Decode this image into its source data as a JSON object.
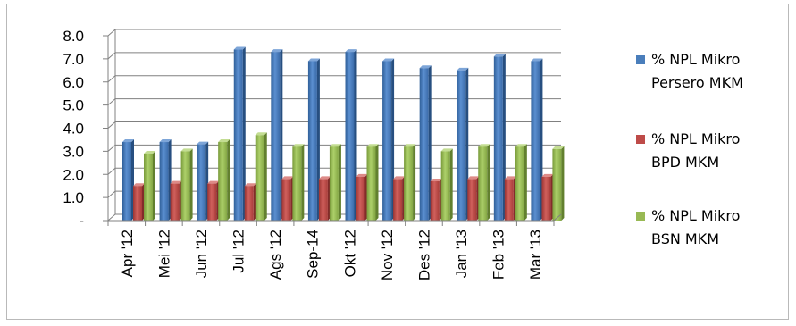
{
  "chart_data": {
    "type": "bar",
    "title": "",
    "xlabel": "",
    "ylabel": "",
    "ylim": [
      0,
      8
    ],
    "yticks": [
      "-",
      "1.0",
      "2.0",
      "3.0",
      "4.0",
      "5.0",
      "6.0",
      "7.0",
      "8.0"
    ],
    "grid": true,
    "legend_position": "right",
    "categories": [
      "Apr '12",
      "Mei '12",
      "Jun '12",
      "Jul '12",
      "Ags '12",
      "Sep-14",
      "Okt '12",
      "Nov '12",
      "Des '12",
      "Jan '13",
      "Feb '13",
      "Mar '13"
    ],
    "series": [
      {
        "name": [
          "% NPL Mikro",
          "Persero MKM"
        ],
        "color": "#4a7ebb",
        "values": [
          3.4,
          3.4,
          3.3,
          7.4,
          7.3,
          6.9,
          7.3,
          6.9,
          6.6,
          6.5,
          7.1,
          6.9
        ]
      },
      {
        "name": [
          "% NPL Mikro",
          "BPD MKM"
        ],
        "color": "#be4b48",
        "values": [
          1.5,
          1.6,
          1.6,
          1.5,
          1.8,
          1.8,
          1.9,
          1.8,
          1.7,
          1.8,
          1.8,
          1.9
        ]
      },
      {
        "name": [
          "% NPL Mikro",
          "BSN MKM"
        ],
        "color": "#98b954",
        "values": [
          2.9,
          3.0,
          3.4,
          3.7,
          3.2,
          3.2,
          3.2,
          3.2,
          3.0,
          3.2,
          3.2,
          3.1
        ]
      }
    ]
  }
}
